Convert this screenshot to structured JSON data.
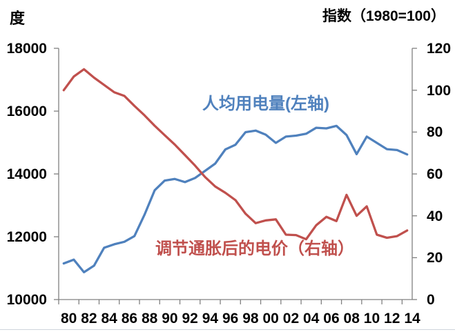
{
  "chart_data": {
    "type": "line",
    "unit_label_left": "度",
    "axis_title_right": "指数（1980=100）",
    "grid": false,
    "legend_position": "labels-inside-plot",
    "axis_color": "#808080",
    "text_color": "#000000",
    "years": [
      1980,
      1981,
      1982,
      1983,
      1984,
      1985,
      1986,
      1987,
      1988,
      1989,
      1990,
      1991,
      1992,
      1993,
      1994,
      1995,
      1996,
      1997,
      1998,
      1999,
      2000,
      2001,
      2002,
      2003,
      2004,
      2005,
      2006,
      2007,
      2008,
      2009,
      2010,
      2011,
      2012,
      2013,
      2014
    ],
    "x_tick_labels": [
      "80",
      "82",
      "84",
      "86",
      "88",
      "90",
      "92",
      "94",
      "96",
      "98",
      "00",
      "02",
      "04",
      "06",
      "08",
      "10",
      "12",
      "14"
    ],
    "left_axis": {
      "min": 10000,
      "max": 18000,
      "tick_step": 2000,
      "ticks": [
        18000,
        16000,
        14000,
        12000,
        10000
      ]
    },
    "right_axis": {
      "min": 0,
      "max": 120,
      "tick_step": 20,
      "ticks": [
        120,
        100,
        80,
        60,
        40,
        20,
        0
      ]
    },
    "series": [
      {
        "name": "人均用电量(左轴)",
        "axis": "left",
        "color": "#4f81bd",
        "values": [
          11150,
          11270,
          10870,
          11080,
          11650,
          11760,
          11840,
          12020,
          12700,
          13480,
          13790,
          13840,
          13740,
          13870,
          14100,
          14330,
          14780,
          14930,
          15330,
          15380,
          15250,
          14990,
          15190,
          15220,
          15280,
          15470,
          15450,
          15530,
          15240,
          14630,
          15190,
          14990,
          14790,
          14760,
          14620
        ]
      },
      {
        "name": "调节通胀后的电价（右轴）",
        "axis": "right",
        "color": "#c0504d",
        "values": [
          100,
          106.5,
          110,
          106,
          102.5,
          99,
          97.3,
          92.5,
          88,
          83,
          78.5,
          74,
          69,
          64,
          58.5,
          54,
          51,
          47.5,
          41,
          36.5,
          37.8,
          38.3,
          31,
          30.8,
          28.8,
          35.5,
          39.5,
          37.5,
          50,
          40,
          44.5,
          31,
          29.5,
          30.3,
          33
        ]
      }
    ]
  }
}
